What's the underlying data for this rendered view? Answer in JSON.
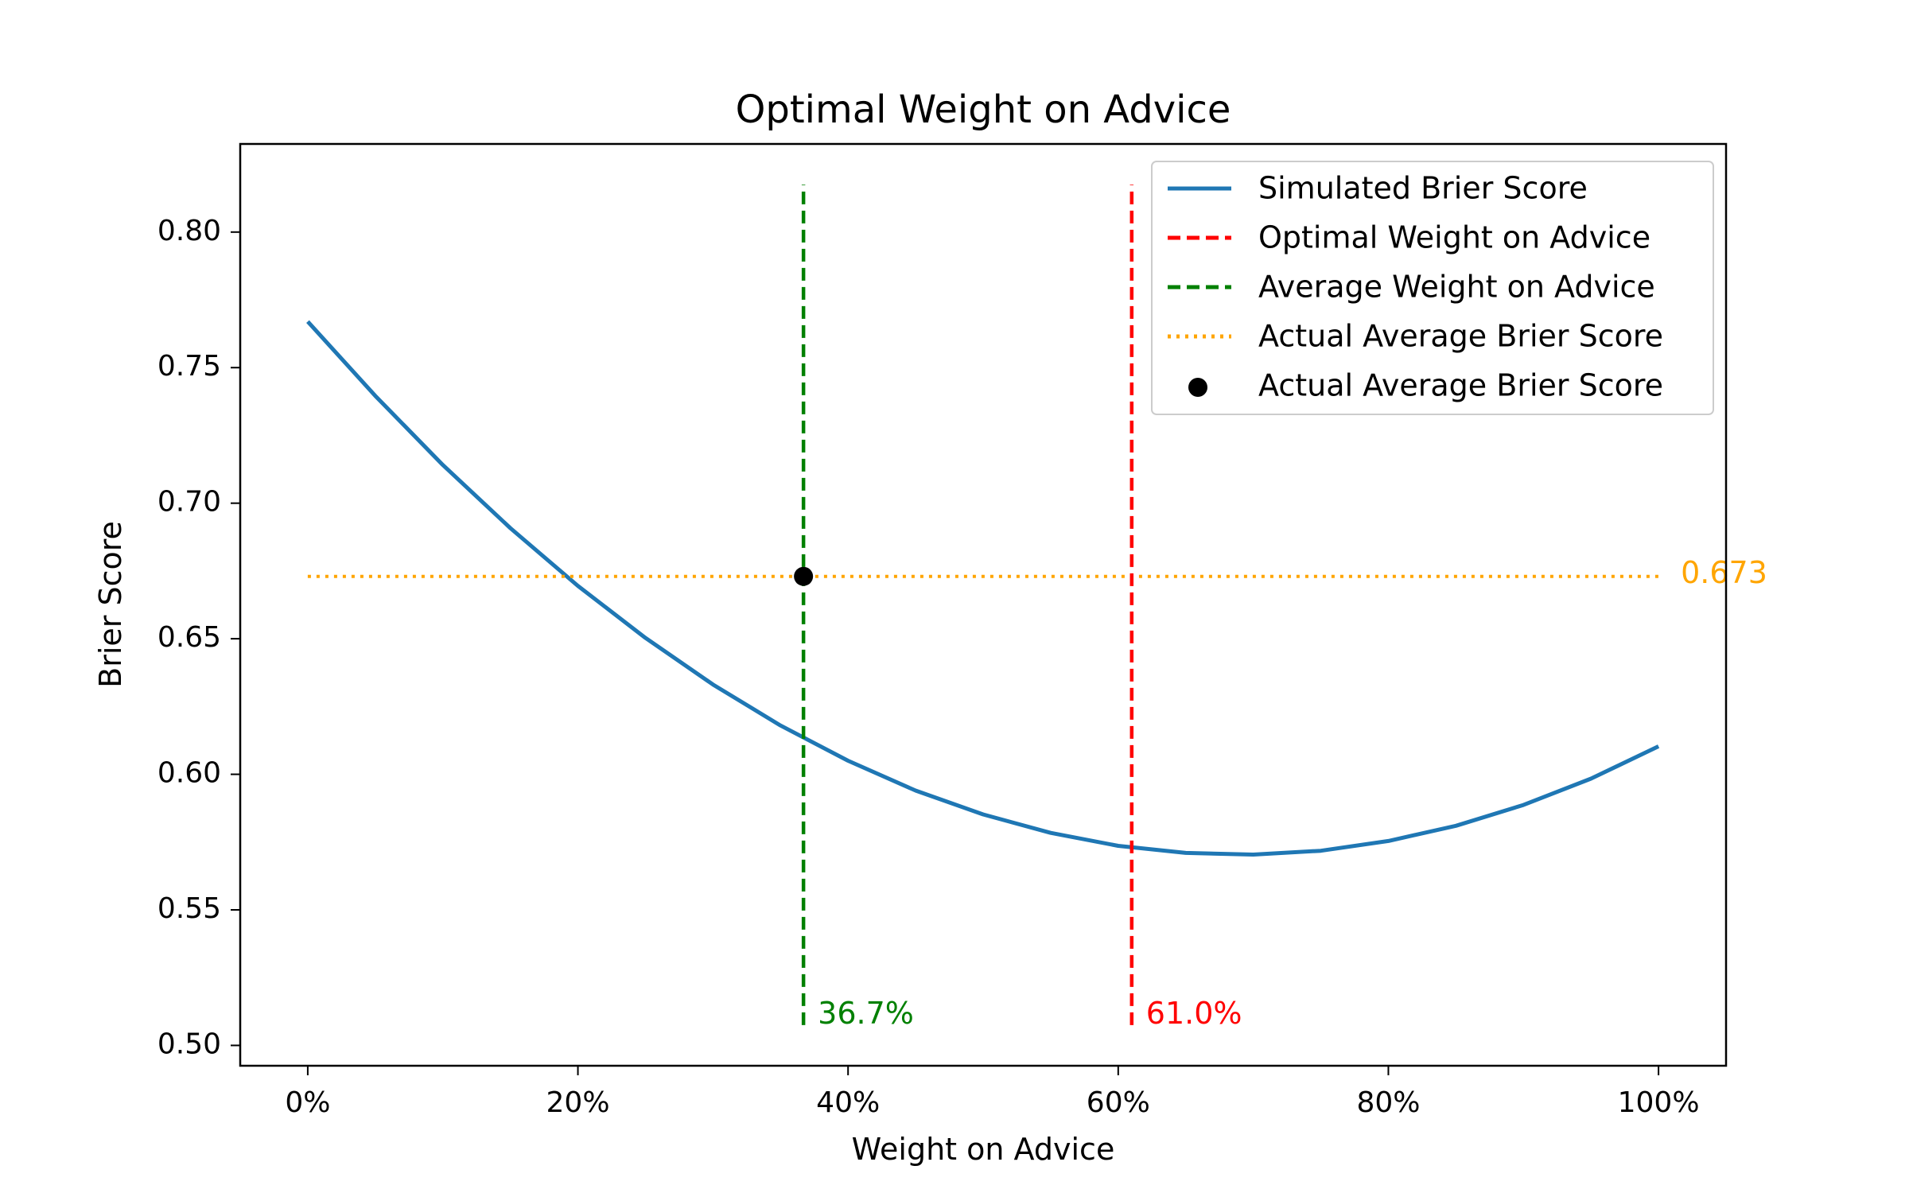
{
  "chart_data": {
    "type": "line",
    "title": "Optimal Weight on Advice",
    "xlabel": "Weight on Advice",
    "ylabel": "Brier Score",
    "xlim": [
      -0.05,
      1.05
    ],
    "ylim": [
      0.4925,
      0.8325
    ],
    "x_ticks": [
      0,
      0.2,
      0.4,
      0.6,
      0.8,
      1.0
    ],
    "x_tick_labels": [
      "0%",
      "20%",
      "40%",
      "60%",
      "80%",
      "100%"
    ],
    "y_ticks": [
      0.5,
      0.55,
      0.6,
      0.65,
      0.7,
      0.75,
      0.8
    ],
    "y_tick_labels": [
      "0.50",
      "0.55",
      "0.60",
      "0.65",
      "0.70",
      "0.75",
      "0.80"
    ],
    "grid": false,
    "legend_position": "top-right",
    "series": [
      {
        "name": "Simulated Brier Score",
        "kind": "line",
        "color": "#1f77b4",
        "x": [
          0.0,
          0.05,
          0.1,
          0.15,
          0.2,
          0.25,
          0.3,
          0.35,
          0.4,
          0.45,
          0.5,
          0.55,
          0.6,
          0.65,
          0.7,
          0.75,
          0.8,
          0.85,
          0.9,
          0.95,
          1.0
        ],
        "y": [
          0.767,
          0.7396,
          0.7141,
          0.6908,
          0.6695,
          0.6503,
          0.6331,
          0.618,
          0.605,
          0.594,
          0.5852,
          0.5784,
          0.5736,
          0.571,
          0.5704,
          0.5718,
          0.5754,
          0.581,
          0.5887,
          0.5984,
          0.6103
        ]
      },
      {
        "name": "Optimal Weight on Advice",
        "kind": "vline",
        "style": "dashed",
        "color": "#ff0000",
        "x": 0.61,
        "y_range": [
          0.5075,
          0.8175
        ],
        "label": "61.0%"
      },
      {
        "name": "Average Weight on Advice",
        "kind": "vline",
        "style": "dashed",
        "color": "#008000",
        "x": 0.367,
        "y_range": [
          0.5075,
          0.8175
        ],
        "label": "36.7%"
      },
      {
        "name": "Actual Average Brier Score",
        "kind": "hline",
        "style": "dotted",
        "color": "#ffa500",
        "y": 0.673,
        "x_range": [
          0.0,
          1.0
        ],
        "label": "0.673"
      },
      {
        "name": "Actual Average Brier Score",
        "kind": "point",
        "color": "#000000",
        "x": 0.367,
        "y": 0.673
      }
    ]
  }
}
